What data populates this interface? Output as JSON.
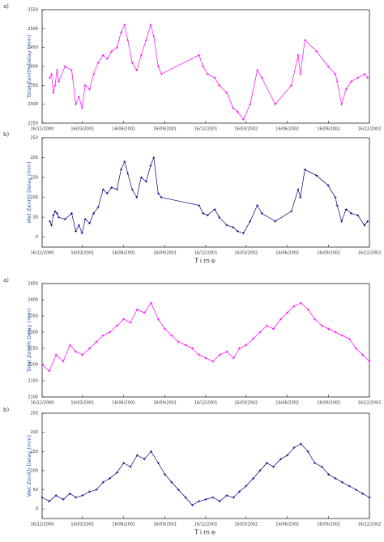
{
  "chart_data": [
    {
      "type": "line",
      "label": "a)",
      "y_label": "Total Zenith Delay (mm)",
      "color": "#ff00ff",
      "x": [
        "2001-01-02",
        "2001-01-06",
        "2001-01-10",
        "2001-01-14",
        "2001-01-18",
        "2001-01-22",
        "2001-02-05",
        "2001-02-20",
        "2001-03-01",
        "2001-03-08",
        "2001-03-15",
        "2001-03-22",
        "2001-04-01",
        "2001-04-10",
        "2001-04-20",
        "2001-05-01",
        "2001-05-10",
        "2001-05-20",
        "2001-06-01",
        "2001-06-10",
        "2001-06-18",
        "2001-06-25",
        "2001-07-05",
        "2001-07-15",
        "2001-07-25",
        "2001-08-05",
        "2001-08-15",
        "2001-08-22",
        "2001-09-01",
        "2001-09-08",
        "2001-12-01",
        "2001-12-10",
        "2001-12-20",
        "2002-01-05",
        "2002-01-15",
        "2002-02-01",
        "2002-02-15",
        "2002-02-25",
        "2002-03-10",
        "2002-03-25",
        "2002-04-10",
        "2002-04-20",
        "2002-05-20",
        "2002-06-25",
        "2002-07-10",
        "2002-07-15",
        "2002-07-25",
        "2002-08-20",
        "2002-09-15",
        "2002-10-01",
        "2002-10-05",
        "2002-10-15",
        "2002-10-25",
        "2002-11-05",
        "2002-11-20",
        "2002-12-05",
        "2002-12-12"
      ],
      "values": [
        2370,
        2380,
        2330,
        2350,
        2390,
        2360,
        2400,
        2390,
        2300,
        2320,
        2290,
        2350,
        2340,
        2380,
        2410,
        2430,
        2420,
        2440,
        2450,
        2490,
        2510,
        2470,
        2410,
        2390,
        2430,
        2470,
        2510,
        2480,
        2400,
        2380,
        2430,
        2400,
        2380,
        2370,
        2350,
        2330,
        2290,
        2280,
        2260,
        2300,
        2390,
        2370,
        2300,
        2350,
        2430,
        2380,
        2470,
        2440,
        2400,
        2380,
        2360,
        2300,
        2340,
        2360,
        2370,
        2380,
        2370
      ],
      "xlim": [
        "2000-12-16",
        "2002-12-16"
      ],
      "xticks": [
        {
          "value": "2000-12-16",
          "label": "16/12/2000"
        },
        {
          "value": "2001-03-16",
          "label": "16/03/2001"
        },
        {
          "value": "2001-06-16",
          "label": "16/06/2001"
        },
        {
          "value": "2001-09-16",
          "label": "16/09/2001"
        },
        {
          "value": "2001-12-16",
          "label": "16/12/2001"
        },
        {
          "value": "2002-03-16",
          "label": "16/03/2002"
        },
        {
          "value": "2002-06-16",
          "label": "16/06/2002"
        },
        {
          "value": "2002-09-16",
          "label": "16/09/2002"
        },
        {
          "value": "2002-12-16",
          "label": "16/12/2002"
        }
      ],
      "ylim": [
        2250,
        2550
      ],
      "yticks": [
        2250,
        2300,
        2350,
        2400,
        2450,
        2500,
        2550
      ]
    },
    {
      "type": "line",
      "label": "b)",
      "y_label": "Wet Zenith Delay (mm)",
      "x_label": "Time",
      "color": "#000080",
      "x": [
        "2001-01-02",
        "2001-01-06",
        "2001-01-10",
        "2001-01-14",
        "2001-01-18",
        "2001-01-22",
        "2001-02-05",
        "2001-02-20",
        "2001-03-01",
        "2001-03-08",
        "2001-03-15",
        "2001-03-22",
        "2001-04-01",
        "2001-04-10",
        "2001-04-20",
        "2001-05-01",
        "2001-05-10",
        "2001-05-20",
        "2001-06-01",
        "2001-06-10",
        "2001-06-18",
        "2001-06-25",
        "2001-07-05",
        "2001-07-15",
        "2001-07-25",
        "2001-08-05",
        "2001-08-15",
        "2001-08-22",
        "2001-09-01",
        "2001-09-08",
        "2001-12-01",
        "2001-12-10",
        "2001-12-20",
        "2002-01-05",
        "2002-01-15",
        "2002-02-01",
        "2002-02-15",
        "2002-02-25",
        "2002-03-10",
        "2002-03-25",
        "2002-04-10",
        "2002-04-20",
        "2002-05-20",
        "2002-06-25",
        "2002-07-10",
        "2002-07-15",
        "2002-07-25",
        "2002-08-20",
        "2002-09-15",
        "2002-10-01",
        "2002-10-05",
        "2002-10-15",
        "2002-10-25",
        "2002-11-05",
        "2002-11-20",
        "2002-12-05",
        "2002-12-12"
      ],
      "values": [
        40,
        30,
        55,
        65,
        60,
        50,
        45,
        60,
        15,
        30,
        10,
        45,
        35,
        60,
        75,
        120,
        110,
        125,
        120,
        170,
        190,
        160,
        120,
        100,
        150,
        140,
        180,
        200,
        110,
        100,
        80,
        60,
        55,
        70,
        50,
        30,
        25,
        15,
        10,
        40,
        80,
        60,
        40,
        65,
        120,
        100,
        170,
        155,
        130,
        100,
        80,
        40,
        70,
        60,
        55,
        30,
        40
      ],
      "xlim": [
        "2000-12-16",
        "2002-12-16"
      ],
      "xticks": [
        {
          "value": "2000-12-16",
          "label": "16/12/2000"
        },
        {
          "value": "2001-03-16",
          "label": "16/03/2001"
        },
        {
          "value": "2001-06-16",
          "label": "16/06/2001"
        },
        {
          "value": "2001-09-16",
          "label": "16/09/2001"
        },
        {
          "value": "2001-12-16",
          "label": "16/12/2001"
        },
        {
          "value": "2002-03-16",
          "label": "16/03/2002"
        },
        {
          "value": "2002-06-16",
          "label": "16/06/2002"
        },
        {
          "value": "2002-09-16",
          "label": "16/09/2002"
        },
        {
          "value": "2002-12-16",
          "label": "16/12/2002"
        }
      ],
      "ylim": [
        -25,
        250
      ],
      "yticks": [
        0,
        50,
        100,
        150,
        200,
        250
      ]
    },
    {
      "type": "line",
      "label": "a)",
      "y_label": "Total Zenith Delay (mm)",
      "color": "#ff00ff",
      "x": [
        "2000-12-16",
        "2001-01-01",
        "2001-01-16",
        "2001-02-01",
        "2001-02-16",
        "2001-03-01",
        "2001-03-16",
        "2001-04-01",
        "2001-04-16",
        "2001-05-01",
        "2001-05-16",
        "2001-06-01",
        "2001-06-16",
        "2001-07-01",
        "2001-07-16",
        "2001-08-01",
        "2001-08-16",
        "2001-09-01",
        "2001-09-16",
        "2001-10-01",
        "2001-10-16",
        "2001-11-01",
        "2001-11-16",
        "2001-12-01",
        "2001-12-16",
        "2002-01-01",
        "2002-01-16",
        "2002-02-01",
        "2002-02-16",
        "2002-03-01",
        "2002-03-16",
        "2002-04-01",
        "2002-04-16",
        "2002-05-01",
        "2002-05-16",
        "2002-06-01",
        "2002-06-16",
        "2002-07-01",
        "2002-07-16",
        "2002-08-01",
        "2002-08-16",
        "2002-09-01",
        "2002-09-16",
        "2002-10-01",
        "2002-10-16",
        "2002-11-01",
        "2002-11-16",
        "2002-12-01",
        "2002-12-16"
      ],
      "values": [
        2200,
        2180,
        2230,
        2210,
        2260,
        2240,
        2230,
        2250,
        2270,
        2290,
        2300,
        2320,
        2340,
        2330,
        2370,
        2360,
        2390,
        2340,
        2310,
        2290,
        2270,
        2260,
        2250,
        2230,
        2220,
        2210,
        2230,
        2240,
        2220,
        2250,
        2260,
        2280,
        2300,
        2320,
        2310,
        2340,
        2360,
        2380,
        2390,
        2370,
        2340,
        2320,
        2310,
        2300,
        2290,
        2280,
        2250,
        2230,
        2210
      ],
      "xlim": [
        "2000-12-16",
        "2002-12-16"
      ],
      "xticks": [
        {
          "value": "2000-12-16",
          "label": "16/12/2000"
        },
        {
          "value": "2001-03-16",
          "label": "16/03/2001"
        },
        {
          "value": "2001-06-16",
          "label": "16/06/2001"
        },
        {
          "value": "2001-09-16",
          "label": "16/09/2001"
        },
        {
          "value": "2001-12-16",
          "label": "16/12/2001"
        },
        {
          "value": "2002-03-16",
          "label": "16/03/2002"
        },
        {
          "value": "2002-06-16",
          "label": "16/06/2002"
        },
        {
          "value": "2002-09-16",
          "label": "16/09/2002"
        },
        {
          "value": "2002-12-16",
          "label": "16/12/2002"
        }
      ],
      "ylim": [
        2100,
        2450
      ],
      "yticks": [
        2100,
        2150,
        2200,
        2250,
        2300,
        2350,
        2400,
        2450
      ]
    },
    {
      "type": "line",
      "label": "b)",
      "y_label": "Wet Zenith Delay (mm)",
      "x_label": "Time",
      "color": "#000080",
      "x": [
        "2000-12-16",
        "2001-01-01",
        "2001-01-16",
        "2001-02-01",
        "2001-02-16",
        "2001-03-01",
        "2001-03-16",
        "2001-04-01",
        "2001-04-16",
        "2001-05-01",
        "2001-05-16",
        "2001-06-01",
        "2001-06-16",
        "2001-07-01",
        "2001-07-16",
        "2001-08-01",
        "2001-08-16",
        "2001-09-01",
        "2001-09-16",
        "2001-10-01",
        "2001-10-16",
        "2001-11-01",
        "2001-11-16",
        "2001-12-01",
        "2001-12-16",
        "2002-01-01",
        "2002-01-16",
        "2002-02-01",
        "2002-02-16",
        "2002-03-01",
        "2002-03-16",
        "2002-04-01",
        "2002-04-16",
        "2002-05-01",
        "2002-05-16",
        "2002-06-01",
        "2002-06-16",
        "2002-07-01",
        "2002-07-16",
        "2002-08-01",
        "2002-08-16",
        "2002-09-01",
        "2002-09-16",
        "2002-10-01",
        "2002-10-16",
        "2002-11-01",
        "2002-11-16",
        "2002-12-01",
        "2002-12-16"
      ],
      "values": [
        30,
        20,
        35,
        25,
        40,
        30,
        35,
        45,
        50,
        70,
        80,
        95,
        120,
        110,
        140,
        130,
        150,
        120,
        90,
        70,
        50,
        30,
        10,
        20,
        25,
        30,
        20,
        35,
        30,
        45,
        60,
        80,
        100,
        120,
        110,
        130,
        140,
        160,
        170,
        150,
        120,
        110,
        90,
        80,
        70,
        60,
        50,
        40,
        30
      ],
      "xlim": [
        "2000-12-16",
        "2002-12-16"
      ],
      "xticks": [
        {
          "value": "2000-12-16",
          "label": "16/12/2000"
        },
        {
          "value": "2001-03-16",
          "label": "16/03/2001"
        },
        {
          "value": "2001-06-16",
          "label": "16/06/2001"
        },
        {
          "value": "2001-09-16",
          "label": "16/09/2001"
        },
        {
          "value": "2001-12-16",
          "label": "16/12/2001"
        },
        {
          "value": "2002-03-16",
          "label": "16/03/2002"
        },
        {
          "value": "2002-06-16",
          "label": "16/06/2002"
        },
        {
          "value": "2002-09-16",
          "label": "16/09/2002"
        },
        {
          "value": "2002-12-16",
          "label": "16/12/2002"
        }
      ],
      "ylim": [
        -25,
        250
      ],
      "yticks": [
        0,
        50,
        100,
        150,
        200,
        250
      ]
    }
  ]
}
